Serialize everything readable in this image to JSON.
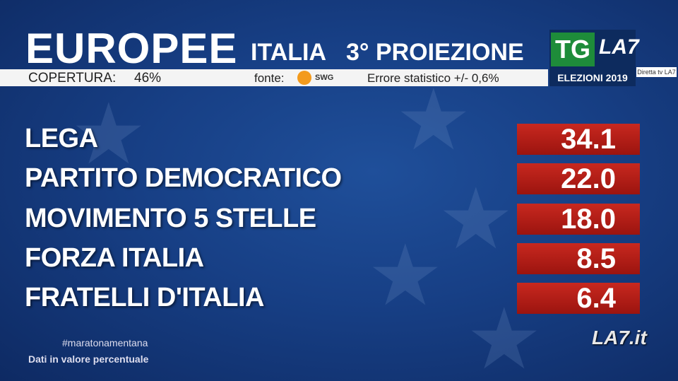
{
  "header": {
    "title": "EUROPEE",
    "region": "ITALIA",
    "projection": "3° PROIEZIONE",
    "coverage_label": "COPERTURA:",
    "coverage_value": "46%",
    "source_label": "fonte:",
    "source": "SWG",
    "error": "Errore statistico +/- 0,6%"
  },
  "logo": {
    "tg": "TG",
    "channel": "LA7",
    "election": "ELEZIONI 2019"
  },
  "watermark": "Diretta tv LA7",
  "results": {
    "rows": [
      [
        "LEGA",
        "34.1"
      ],
      [
        "PARTITO DEMOCRATICO",
        "22.0"
      ],
      [
        "MOVIMENTO 5 STELLE",
        "18.0"
      ],
      [
        "FORZA ITALIA",
        "8.5"
      ],
      [
        "FRATELLI D'ITALIA",
        "6.4"
      ]
    ]
  },
  "footer": {
    "hashtag": "#maratonamentana",
    "note": "Dati in valore percentuale"
  },
  "corner_logo": "LA7.it"
}
